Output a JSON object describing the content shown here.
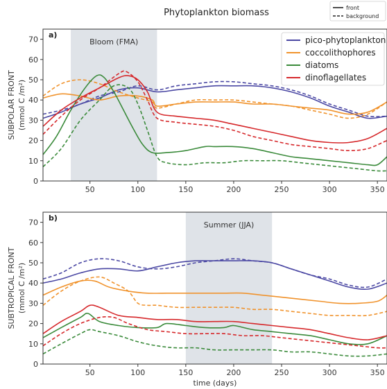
{
  "figure_title": "Phytoplankton biomass",
  "style_legend": [
    {
      "label": "front",
      "dash": "solid"
    },
    {
      "label": "background",
      "dash": "dashed"
    }
  ],
  "group_legend": [
    {
      "label": "pico-phytoplankton",
      "color": "#4a47a3"
    },
    {
      "label": "coccolithophores",
      "color": "#f0922b"
    },
    {
      "label": "diatoms",
      "color": "#3a8a3a"
    },
    {
      "label": "dinoflagellates",
      "color": "#d6282b"
    }
  ],
  "xlabel": "time (days)",
  "chart_data": [
    {
      "type": "line",
      "panel_label": "a)",
      "ylabel_line1": "SUBPOLAR FRONT",
      "ylabel_line2": "(mmol C /m²)",
      "shade": {
        "from": 30,
        "to": 120,
        "label": "Bloom (FMA)"
      },
      "xlim": [
        1,
        360
      ],
      "ylim": [
        0,
        75
      ],
      "xticks": [
        50,
        100,
        150,
        200,
        250,
        300,
        350
      ],
      "yticks": [
        0,
        10,
        20,
        30,
        40,
        50,
        60,
        70
      ],
      "legend_position": "top-right",
      "series": [
        {
          "name": "pico-phytoplankton",
          "variant": "front",
          "color": "#4a47a3",
          "x": [
            1,
            20,
            40,
            60,
            80,
            100,
            120,
            140,
            160,
            180,
            200,
            220,
            240,
            260,
            280,
            300,
            320,
            340,
            360
          ],
          "y": [
            31,
            34,
            38,
            41,
            45,
            46,
            44,
            45,
            46,
            47,
            47,
            47,
            46,
            44,
            41,
            37,
            34,
            31,
            32
          ]
        },
        {
          "name": "pico-phytoplankton",
          "variant": "background",
          "color": "#4a47a3",
          "x": [
            1,
            20,
            40,
            60,
            80,
            100,
            120,
            140,
            160,
            180,
            200,
            220,
            240,
            260,
            280,
            300,
            320,
            340,
            360
          ],
          "y": [
            33,
            35,
            38,
            42,
            44,
            47,
            45,
            47,
            48,
            49,
            49,
            48,
            47,
            45,
            42,
            38,
            35,
            32,
            32
          ]
        },
        {
          "name": "coccolithophores",
          "variant": "front",
          "color": "#f0922b",
          "x": [
            1,
            20,
            40,
            60,
            80,
            100,
            115,
            120,
            140,
            160,
            180,
            200,
            220,
            240,
            260,
            280,
            300,
            320,
            340,
            360
          ],
          "y": [
            41,
            43,
            42,
            40,
            42,
            42,
            40,
            37,
            38,
            39,
            39,
            39,
            38,
            38,
            37,
            36,
            35,
            33,
            34,
            39
          ]
        },
        {
          "name": "coccolithophores",
          "variant": "background",
          "color": "#f0922b",
          "x": [
            1,
            20,
            40,
            60,
            80,
            100,
            115,
            120,
            140,
            160,
            180,
            200,
            220,
            240,
            260,
            280,
            300,
            320,
            340,
            360
          ],
          "y": [
            42,
            48,
            50,
            48,
            44,
            41,
            39,
            36,
            38,
            40,
            40,
            40,
            39,
            38,
            37,
            35,
            33,
            31,
            33,
            39
          ]
        },
        {
          "name": "diatoms",
          "variant": "front",
          "color": "#3a8a3a",
          "x": [
            1,
            15,
            30,
            45,
            57,
            65,
            75,
            85,
            95,
            105,
            115,
            130,
            150,
            170,
            180,
            200,
            220,
            240,
            260,
            280,
            300,
            320,
            340,
            350,
            360
          ],
          "y": [
            13,
            22,
            35,
            46,
            52,
            51,
            44,
            35,
            26,
            18,
            14,
            14,
            15,
            17,
            17,
            17,
            16,
            14,
            12,
            11,
            10,
            9,
            8,
            8,
            12
          ]
        },
        {
          "name": "diatoms",
          "variant": "background",
          "color": "#3a8a3a",
          "x": [
            1,
            20,
            40,
            60,
            75,
            90,
            100,
            110,
            120,
            130,
            150,
            170,
            190,
            210,
            230,
            250,
            270,
            290,
            310,
            330,
            350,
            360
          ],
          "y": [
            7,
            16,
            30,
            40,
            47,
            46,
            38,
            25,
            12,
            9,
            8,
            9,
            9,
            10,
            10,
            10,
            9,
            8,
            7,
            6,
            5,
            5
          ]
        },
        {
          "name": "dinoflagellates",
          "variant": "front",
          "color": "#d6282b",
          "x": [
            1,
            20,
            40,
            60,
            80,
            90,
            100,
            110,
            120,
            140,
            160,
            180,
            200,
            220,
            240,
            260,
            280,
            300,
            320,
            340,
            360
          ],
          "y": [
            27,
            35,
            41,
            46,
            51,
            52,
            50,
            44,
            34,
            32,
            31,
            30,
            28,
            26,
            24,
            22,
            20,
            19,
            19,
            21,
            26
          ]
        },
        {
          "name": "dinoflagellates",
          "variant": "background",
          "color": "#d6282b",
          "x": [
            1,
            20,
            40,
            60,
            80,
            88,
            100,
            110,
            120,
            140,
            160,
            180,
            200,
            220,
            240,
            260,
            280,
            300,
            320,
            340,
            360
          ],
          "y": [
            23,
            32,
            40,
            46,
            53,
            54,
            49,
            40,
            31,
            29,
            28,
            27,
            25,
            22,
            20,
            18,
            17,
            16,
            15,
            16,
            20
          ]
        }
      ]
    },
    {
      "type": "line",
      "panel_label": "b)",
      "ylabel_line1": "SUBTROPICAL FRONT",
      "ylabel_line2": "(mmol C /m²)",
      "shade": {
        "from": 150,
        "to": 240,
        "label": "Summer (JJA)"
      },
      "xlim": [
        1,
        360
      ],
      "ylim": [
        0,
        75
      ],
      "xticks": [
        50,
        100,
        150,
        200,
        250,
        300,
        350
      ],
      "yticks": [
        0,
        10,
        20,
        30,
        40,
        50,
        60,
        70
      ],
      "series": [
        {
          "name": "pico-phytoplankton",
          "variant": "front",
          "color": "#4a47a3",
          "x": [
            1,
            20,
            40,
            60,
            80,
            100,
            120,
            140,
            160,
            180,
            200,
            220,
            240,
            260,
            280,
            300,
            320,
            340,
            360
          ],
          "y": [
            40,
            42,
            45,
            47,
            47,
            46,
            48,
            50,
            51,
            51,
            51,
            51,
            50,
            47,
            44,
            41,
            38,
            37,
            40
          ]
        },
        {
          "name": "pico-phytoplankton",
          "variant": "background",
          "color": "#4a47a3",
          "x": [
            1,
            20,
            40,
            60,
            80,
            100,
            120,
            140,
            160,
            180,
            200,
            220,
            240,
            260,
            280,
            300,
            320,
            340,
            360
          ],
          "y": [
            42,
            45,
            50,
            52,
            51,
            48,
            47,
            48,
            50,
            51,
            52,
            51,
            50,
            47,
            44,
            42,
            39,
            38,
            42
          ]
        },
        {
          "name": "coccolithophores",
          "variant": "front",
          "color": "#f0922b",
          "x": [
            1,
            20,
            40,
            55,
            70,
            90,
            110,
            130,
            150,
            170,
            190,
            210,
            230,
            250,
            270,
            290,
            310,
            330,
            350,
            360
          ],
          "y": [
            34,
            38,
            41,
            41,
            38,
            36,
            35,
            35,
            35,
            35,
            35,
            35,
            34,
            33,
            32,
            31,
            30,
            30,
            31,
            34
          ]
        },
        {
          "name": "coccolithophores",
          "variant": "background",
          "color": "#f0922b",
          "x": [
            1,
            20,
            40,
            60,
            75,
            90,
            100,
            110,
            120,
            140,
            160,
            180,
            200,
            220,
            240,
            260,
            280,
            300,
            320,
            340,
            360
          ],
          "y": [
            29,
            36,
            41,
            43,
            40,
            36,
            30,
            29,
            29,
            28,
            28,
            28,
            28,
            27,
            27,
            26,
            25,
            24,
            24,
            24,
            26
          ]
        },
        {
          "name": "diatoms",
          "variant": "front",
          "color": "#3a8a3a",
          "x": [
            1,
            20,
            40,
            48,
            60,
            80,
            100,
            120,
            130,
            150,
            170,
            190,
            200,
            220,
            240,
            260,
            280,
            300,
            320,
            340,
            360
          ],
          "y": [
            13,
            18,
            23,
            25,
            21,
            19,
            18,
            18,
            20,
            19,
            18,
            18,
            19,
            17,
            16,
            15,
            14,
            12,
            10,
            10,
            14
          ]
        },
        {
          "name": "diatoms",
          "variant": "background",
          "color": "#3a8a3a",
          "x": [
            1,
            20,
            40,
            50,
            60,
            80,
            100,
            120,
            140,
            160,
            180,
            200,
            220,
            240,
            260,
            280,
            300,
            320,
            340,
            360
          ],
          "y": [
            5,
            10,
            15,
            17,
            16,
            14,
            11,
            9,
            8,
            8,
            7,
            7,
            7,
            7,
            6,
            6,
            5,
            4,
            4,
            5
          ]
        },
        {
          "name": "dinoflagellates",
          "variant": "front",
          "color": "#d6282b",
          "x": [
            1,
            20,
            40,
            50,
            60,
            80,
            100,
            120,
            140,
            160,
            180,
            200,
            220,
            240,
            260,
            280,
            300,
            320,
            340,
            360
          ],
          "y": [
            15,
            21,
            26,
            29,
            28,
            24,
            23,
            22,
            22,
            21,
            21,
            21,
            20,
            19,
            18,
            17,
            15,
            13,
            12,
            14
          ]
        },
        {
          "name": "dinoflagellates",
          "variant": "background",
          "color": "#d6282b",
          "x": [
            1,
            20,
            40,
            60,
            75,
            90,
            110,
            130,
            150,
            170,
            190,
            210,
            230,
            250,
            270,
            290,
            310,
            330,
            350,
            360
          ],
          "y": [
            9,
            15,
            20,
            23,
            23,
            20,
            17,
            16,
            15,
            15,
            15,
            14,
            14,
            13,
            12,
            11,
            10,
            9,
            8,
            8
          ]
        }
      ]
    }
  ]
}
